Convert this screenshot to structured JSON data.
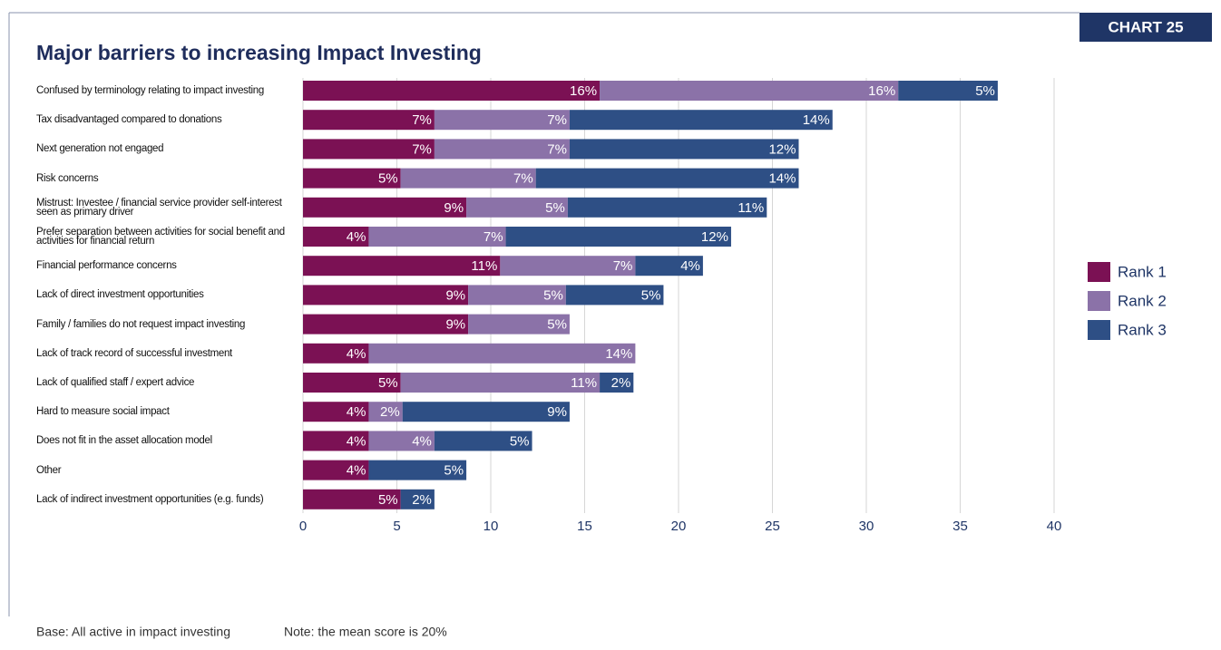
{
  "chart_data": {
    "type": "stacked-bar-horizontal",
    "badge": "CHART 25",
    "title": "Major barriers to increasing Impact Investing",
    "categories": [
      "Confused by terminology relating to impact investing",
      "Tax disadvantaged compared to donations",
      "Next generation not engaged",
      "Risk concerns",
      "Mistrust: Investee / financial service provider self-interest seen as primary driver",
      "Prefer separation between activities for social benefit and activities for financial return",
      "Financial performance concerns",
      "Lack of direct investment opportunities",
      "Family / families do not request impact investing",
      "Lack of track record of successful investment",
      "Lack of qualified staff / expert advice",
      "Hard to measure social impact",
      "Does not fit in the asset allocation model",
      "Other",
      "Lack of indirect investment opportunities (e.g. funds)"
    ],
    "series": [
      {
        "name": "Rank 1",
        "color": "#7b1154",
        "values": [
          15.8,
          7.0,
          7.0,
          5.2,
          8.7,
          3.5,
          10.5,
          8.8,
          8.8,
          3.5,
          5.2,
          3.5,
          3.5,
          3.5,
          5.2
        ],
        "value_labels": [
          "16%",
          "7%",
          "7%",
          "5%",
          "9%",
          "4%",
          "11%",
          "9%",
          "9%",
          "4%",
          "5%",
          "4%",
          "4%",
          "4%",
          "5%"
        ]
      },
      {
        "name": "Rank 2",
        "color": "#8b72a8",
        "values": [
          15.9,
          7.2,
          7.2,
          7.2,
          5.4,
          7.3,
          7.2,
          5.2,
          5.4,
          14.2,
          10.6,
          1.8,
          3.5,
          null,
          null
        ],
        "value_labels": [
          "16%",
          "7%",
          "7%",
          "7%",
          "5%",
          "7%",
          "7%",
          "5%",
          "5%",
          "14%",
          "11%",
          "2%",
          "4%",
          null,
          null
        ]
      },
      {
        "name": "Rank 3",
        "color": "#2e4f85",
        "values": [
          5.3,
          14.0,
          12.2,
          14.0,
          10.6,
          12.0,
          3.6,
          5.2,
          null,
          null,
          1.8,
          8.9,
          5.2,
          5.2,
          1.8
        ],
        "value_labels": [
          "5%",
          "14%",
          "12%",
          "14%",
          "11%",
          "12%",
          "4%",
          "5%",
          null,
          null,
          "2%",
          "9%",
          "5%",
          "5%",
          "2%"
        ]
      }
    ],
    "xlim": [
      0,
      40
    ],
    "xticks": [
      0,
      5,
      10,
      15,
      20,
      25,
      30,
      35,
      40
    ],
    "grid": true,
    "legend": "right",
    "footnotes": [
      "Base: All active in impact investing",
      "Note: the mean score is 20%"
    ]
  }
}
